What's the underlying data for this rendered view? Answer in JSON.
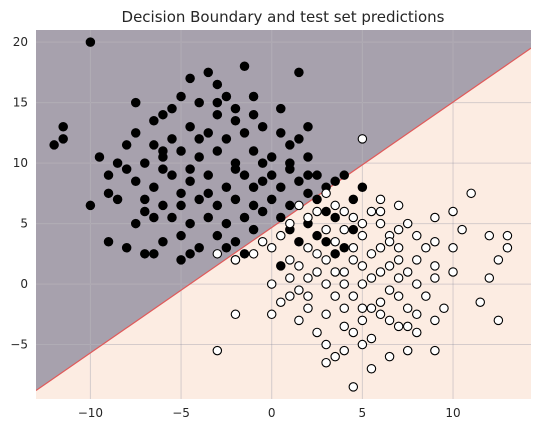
{
  "chart_data": {
    "type": "scatter",
    "title": "Decision Boundary and test set predictions",
    "xlabel": "",
    "ylabel": "",
    "xlim": [
      -13.0,
      14.3
    ],
    "ylim": [
      -9.5,
      21.0
    ],
    "x_ticks": [
      -10,
      -5,
      0,
      5,
      10
    ],
    "y_ticks": [
      -5,
      0,
      5,
      10,
      15,
      20
    ],
    "grid": true,
    "legend": "none",
    "decision_boundary": {
      "x": [
        -13.0,
        14.3
      ],
      "y": [
        -8.8,
        19.5
      ]
    },
    "region_colors": {
      "upper": "#a7a1ad",
      "lower": "#fcece2",
      "boundary": "#e05a5a"
    },
    "series": [
      {
        "color": "#000000",
        "marker_face": "#000000",
        "points": [
          [
            -10.0,
            20.0
          ],
          [
            -4.5,
            17.0
          ],
          [
            -3.5,
            17.5
          ],
          [
            -1.5,
            18.0
          ],
          [
            1.5,
            17.5
          ],
          [
            -7.5,
            15.0
          ],
          [
            -5.0,
            15.5
          ],
          [
            -4.0,
            15.0
          ],
          [
            -2.5,
            15.5
          ],
          [
            -6.5,
            13.5
          ],
          [
            -3.0,
            14.0
          ],
          [
            -2.0,
            14.5
          ],
          [
            0.5,
            14.5
          ],
          [
            -11.5,
            13.0
          ],
          [
            -11.5,
            12.0
          ],
          [
            -12.0,
            11.5
          ],
          [
            -9.5,
            10.5
          ],
          [
            -8.5,
            10.0
          ],
          [
            -7.5,
            12.5
          ],
          [
            -6.5,
            11.5
          ],
          [
            -5.5,
            12.0
          ],
          [
            -4.5,
            13.0
          ],
          [
            -3.5,
            12.5
          ],
          [
            -2.5,
            12.0
          ],
          [
            -1.5,
            12.5
          ],
          [
            -0.5,
            13.0
          ],
          [
            0.5,
            12.5
          ],
          [
            1.5,
            12.0
          ],
          [
            -8.0,
            9.5
          ],
          [
            -7.0,
            10.0
          ],
          [
            -6.0,
            10.5
          ],
          [
            -5.0,
            11.0
          ],
          [
            -4.0,
            10.5
          ],
          [
            -3.0,
            11.0
          ],
          [
            -2.0,
            10.0
          ],
          [
            -1.0,
            11.0
          ],
          [
            0.0,
            10.5
          ],
          [
            1.0,
            10.0
          ],
          [
            2.0,
            10.5
          ],
          [
            -7.5,
            8.5
          ],
          [
            -6.5,
            8.0
          ],
          [
            -5.5,
            9.0
          ],
          [
            -4.5,
            8.5
          ],
          [
            -3.5,
            9.0
          ],
          [
            -2.5,
            8.0
          ],
          [
            -1.5,
            9.0
          ],
          [
            -0.5,
            8.5
          ],
          [
            0.5,
            8.0
          ],
          [
            1.5,
            8.5
          ],
          [
            2.5,
            9.0
          ],
          [
            -9.0,
            7.5
          ],
          [
            -7.0,
            7.0
          ],
          [
            -6.0,
            6.5
          ],
          [
            -5.0,
            7.5
          ],
          [
            -4.0,
            7.0
          ],
          [
            -3.0,
            6.5
          ],
          [
            -2.0,
            7.0
          ],
          [
            -1.0,
            6.5
          ],
          [
            0.0,
            7.0
          ],
          [
            1.0,
            6.5
          ],
          [
            2.0,
            7.5
          ],
          [
            -10.0,
            6.5
          ],
          [
            -5.5,
            5.5
          ],
          [
            -4.5,
            5.0
          ],
          [
            -3.5,
            5.5
          ],
          [
            -2.5,
            5.0
          ],
          [
            -1.5,
            5.5
          ],
          [
            -0.5,
            6.0
          ],
          [
            0.5,
            5.5
          ],
          [
            -9.0,
            3.5
          ],
          [
            -8.0,
            3.0
          ],
          [
            -6.0,
            3.5
          ],
          [
            -5.0,
            4.0
          ],
          [
            -4.0,
            3.0
          ],
          [
            -3.0,
            4.0
          ],
          [
            -2.0,
            3.5
          ],
          [
            -1.0,
            4.5
          ],
          [
            -6.5,
            2.5
          ],
          [
            -5.0,
            2.0
          ],
          [
            -2.0,
            2.0
          ],
          [
            -1.5,
            2.5
          ],
          [
            -7.0,
            2.5
          ],
          [
            -4.5,
            2.5
          ],
          [
            -2.5,
            3.0
          ],
          [
            -5.0,
            6.5
          ],
          [
            -6.0,
            11.0
          ],
          [
            -4.0,
            12.0
          ],
          [
            -2.0,
            13.5
          ],
          [
            -1.0,
            14.0
          ],
          [
            3.0,
            8.0
          ],
          [
            3.5,
            8.5
          ],
          [
            2.5,
            7.0
          ],
          [
            3.0,
            6.0
          ],
          [
            3.5,
            5.5
          ],
          [
            4.0,
            9.0
          ],
          [
            4.5,
            7.0
          ],
          [
            5.0,
            8.0
          ],
          [
            1.0,
            4.5
          ],
          [
            2.0,
            5.0
          ],
          [
            2.5,
            4.0
          ],
          [
            3.0,
            3.5
          ],
          [
            3.5,
            2.5
          ],
          [
            4.0,
            3.0
          ],
          [
            4.5,
            4.5
          ],
          [
            1.5,
            3.5
          ],
          [
            0.5,
            1.5
          ],
          [
            -1.0,
            15.5
          ],
          [
            -3.0,
            16.5
          ],
          [
            -6.0,
            14.0
          ],
          [
            -8.0,
            11.5
          ],
          [
            -9.0,
            9.0
          ],
          [
            -7.0,
            6.0
          ],
          [
            -3.5,
            7.5
          ],
          [
            -1.0,
            8.0
          ],
          [
            0.0,
            9.0
          ],
          [
            1.0,
            11.5
          ],
          [
            2.0,
            13.0
          ],
          [
            -5.5,
            14.5
          ],
          [
            -3.0,
            15.0
          ],
          [
            -6.5,
            5.5
          ],
          [
            -7.5,
            5.0
          ],
          [
            -8.5,
            7.0
          ],
          [
            -6.0,
            9.5
          ],
          [
            -4.5,
            9.5
          ],
          [
            -2.0,
            9.5
          ],
          [
            -0.5,
            10.0
          ],
          [
            1.0,
            9.5
          ],
          [
            2.0,
            9.0
          ]
        ]
      },
      {
        "color": "#000000",
        "marker_face": "#ffffff",
        "points": [
          [
            5.0,
            12.0
          ],
          [
            11.0,
            7.5
          ],
          [
            7.0,
            6.5
          ],
          [
            10.0,
            6.0
          ],
          [
            12.0,
            4.0
          ],
          [
            13.0,
            4.0
          ],
          [
            13.0,
            3.0
          ],
          [
            12.5,
            2.0
          ],
          [
            12.0,
            0.5
          ],
          [
            12.5,
            -3.0
          ],
          [
            11.5,
            -1.5
          ],
          [
            10.5,
            4.5
          ],
          [
            10.0,
            3.0
          ],
          [
            9.0,
            5.5
          ],
          [
            9.0,
            3.5
          ],
          [
            9.0,
            1.5
          ],
          [
            9.5,
            -2.0
          ],
          [
            9.0,
            -3.0
          ],
          [
            9.0,
            -5.5
          ],
          [
            8.0,
            -2.5
          ],
          [
            7.5,
            -5.5
          ],
          [
            7.5,
            -3.5
          ],
          [
            7.0,
            -1.0
          ],
          [
            7.0,
            2.0
          ],
          [
            6.5,
            4.0
          ],
          [
            6.0,
            7.0
          ],
          [
            5.5,
            6.0
          ],
          [
            5.0,
            5.0
          ],
          [
            4.5,
            5.5
          ],
          [
            4.0,
            6.0
          ],
          [
            3.5,
            6.5
          ],
          [
            3.0,
            7.5
          ],
          [
            2.5,
            6.0
          ],
          [
            2.0,
            5.5
          ],
          [
            1.5,
            6.5
          ],
          [
            1.0,
            5.0
          ],
          [
            0.5,
            4.0
          ],
          [
            0.0,
            3.0
          ],
          [
            -0.5,
            3.5
          ],
          [
            -1.0,
            2.5
          ],
          [
            -2.0,
            2.0
          ],
          [
            -3.0,
            2.5
          ],
          [
            -2.0,
            -2.5
          ],
          [
            -3.0,
            -5.5
          ],
          [
            0.0,
            -2.5
          ],
          [
            0.0,
            0.0
          ],
          [
            1.0,
            -1.0
          ],
          [
            1.5,
            -3.0
          ],
          [
            2.0,
            -2.0
          ],
          [
            2.5,
            -4.0
          ],
          [
            3.0,
            -5.0
          ],
          [
            3.5,
            -6.0
          ],
          [
            4.0,
            -5.5
          ],
          [
            4.5,
            -4.0
          ],
          [
            5.0,
            -3.0
          ],
          [
            5.5,
            -2.0
          ],
          [
            6.0,
            -1.5
          ],
          [
            6.5,
            -0.5
          ],
          [
            7.0,
            0.5
          ],
          [
            7.5,
            1.0
          ],
          [
            8.0,
            2.0
          ],
          [
            8.5,
            3.0
          ],
          [
            4.0,
            1.0
          ],
          [
            4.5,
            2.0
          ],
          [
            5.0,
            1.5
          ],
          [
            5.5,
            2.5
          ],
          [
            6.0,
            3.0
          ],
          [
            6.5,
            3.5
          ],
          [
            3.0,
            0.0
          ],
          [
            3.5,
            -1.0
          ],
          [
            4.0,
            -2.0
          ],
          [
            2.5,
            1.0
          ],
          [
            2.0,
            0.5
          ],
          [
            1.5,
            1.5
          ],
          [
            1.0,
            2.0
          ],
          [
            5.0,
            4.0
          ],
          [
            4.0,
            4.5
          ],
          [
            3.5,
            3.5
          ],
          [
            6.0,
            5.0
          ],
          [
            7.0,
            4.5
          ],
          [
            8.0,
            4.0
          ],
          [
            5.5,
            -4.5
          ],
          [
            6.5,
            -3.0
          ],
          [
            7.5,
            -2.0
          ],
          [
            8.5,
            -1.0
          ],
          [
            4.5,
            -1.0
          ],
          [
            3.0,
            2.0
          ],
          [
            2.0,
            3.0
          ],
          [
            1.0,
            0.5
          ],
          [
            0.5,
            -1.5
          ],
          [
            5.0,
            0.0
          ],
          [
            6.0,
            1.0
          ],
          [
            7.0,
            3.0
          ],
          [
            8.0,
            0.0
          ],
          [
            9.0,
            0.5
          ],
          [
            10.0,
            1.0
          ],
          [
            5.5,
            -7.0
          ],
          [
            4.5,
            -8.5
          ],
          [
            3.0,
            -6.5
          ],
          [
            6.0,
            6.0
          ],
          [
            7.5,
            5.0
          ],
          [
            4.5,
            3.0
          ],
          [
            3.0,
            4.5
          ],
          [
            2.5,
            2.5
          ],
          [
            3.5,
            1.0
          ],
          [
            4.0,
            0.0
          ],
          [
            5.5,
            0.5
          ],
          [
            6.5,
            1.5
          ],
          [
            5.0,
            -2.0
          ],
          [
            6.0,
            -2.5
          ],
          [
            7.0,
            -3.5
          ],
          [
            8.0,
            -4.0
          ],
          [
            2.0,
            -1.0
          ],
          [
            1.5,
            -0.5
          ],
          [
            3.0,
            -2.5
          ],
          [
            4.0,
            -3.5
          ],
          [
            5.0,
            -5.0
          ],
          [
            6.5,
            -6.0
          ]
        ]
      }
    ]
  }
}
